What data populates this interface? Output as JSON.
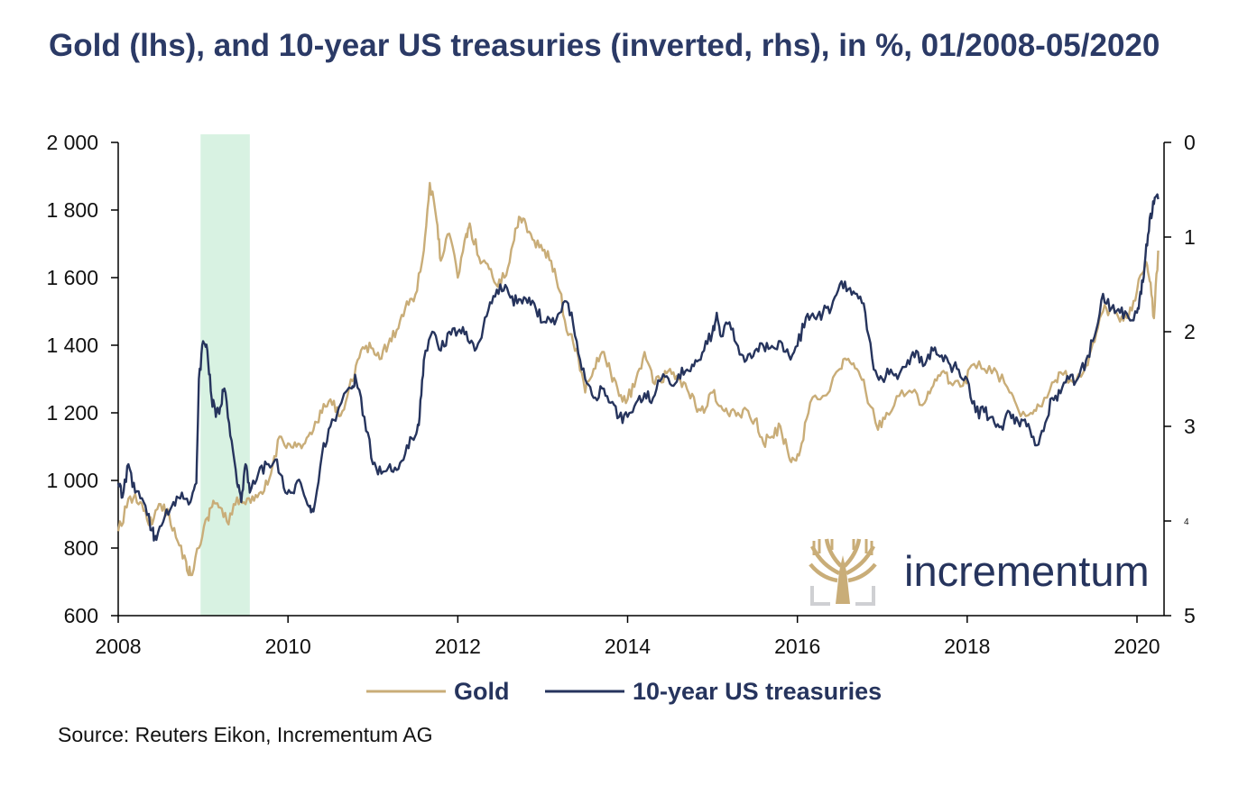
{
  "chart_data": {
    "type": "line",
    "title": "Gold (lhs), and 10-year US treasuries (inverted, rhs), in %, 01/2008-05/2020",
    "source": "Source: Reuters Eikon, Incrementum AG",
    "brand": "incrementum",
    "colors": {
      "gold": "#c9ad78",
      "treasuries": "#26345d",
      "recession": "#d8f2e2",
      "title": "#2b3a66"
    },
    "x_axis": {
      "range": [
        2008.0,
        2020.25
      ],
      "ticks": [
        "2008",
        "2010",
        "2012",
        "2014",
        "2016",
        "2018",
        "2020"
      ],
      "tick_values": [
        2008,
        2010,
        2012,
        2014,
        2016,
        2018,
        2020
      ]
    },
    "y_left": {
      "range": [
        600,
        2000
      ],
      "ticks": [
        "600",
        "800",
        "1 000",
        "1 200",
        "1 400",
        "1 600",
        "1 800",
        "2 000"
      ],
      "tick_values": [
        600,
        800,
        1000,
        1200,
        1400,
        1600,
        1800,
        2000
      ]
    },
    "y_right": {
      "range": [
        0,
        5
      ],
      "inverted": true,
      "ticks": [
        "0",
        "1",
        "2",
        "3",
        "4",
        "5"
      ],
      "tick_values": [
        0,
        1,
        2,
        3,
        4,
        5
      ]
    },
    "shaded_region": [
      2008.97,
      2009.55
    ],
    "legend": {
      "placement": "bottom-center",
      "entries": [
        "Gold",
        "10-year US treasuries"
      ]
    },
    "series": [
      {
        "name": "Gold",
        "axis": "left",
        "points": [
          [
            2008.0,
            850
          ],
          [
            2008.1,
            920
          ],
          [
            2008.2,
            960
          ],
          [
            2008.3,
            910
          ],
          [
            2008.4,
            870
          ],
          [
            2008.5,
            930
          ],
          [
            2008.6,
            900
          ],
          [
            2008.7,
            820
          ],
          [
            2008.8,
            760
          ],
          [
            2008.85,
            720
          ],
          [
            2008.95,
            800
          ],
          [
            2009.05,
            890
          ],
          [
            2009.12,
            940
          ],
          [
            2009.2,
            920
          ],
          [
            2009.3,
            870
          ],
          [
            2009.4,
            950
          ],
          [
            2009.5,
            930
          ],
          [
            2009.6,
            940
          ],
          [
            2009.7,
            960
          ],
          [
            2009.8,
            1020
          ],
          [
            2009.9,
            1130
          ],
          [
            2010.0,
            1110
          ],
          [
            2010.1,
            1100
          ],
          [
            2010.2,
            1110
          ],
          [
            2010.3,
            1150
          ],
          [
            2010.4,
            1200
          ],
          [
            2010.5,
            1240
          ],
          [
            2010.6,
            1190
          ],
          [
            2010.7,
            1250
          ],
          [
            2010.8,
            1340
          ],
          [
            2010.9,
            1390
          ],
          [
            2011.0,
            1390
          ],
          [
            2011.1,
            1360
          ],
          [
            2011.2,
            1420
          ],
          [
            2011.3,
            1450
          ],
          [
            2011.4,
            1530
          ],
          [
            2011.5,
            1550
          ],
          [
            2011.6,
            1680
          ],
          [
            2011.67,
            1880
          ],
          [
            2011.75,
            1770
          ],
          [
            2011.8,
            1650
          ],
          [
            2011.9,
            1730
          ],
          [
            2012.0,
            1600
          ],
          [
            2012.1,
            1730
          ],
          [
            2012.15,
            1750
          ],
          [
            2012.25,
            1660
          ],
          [
            2012.35,
            1640
          ],
          [
            2012.45,
            1580
          ],
          [
            2012.55,
            1600
          ],
          [
            2012.65,
            1700
          ],
          [
            2012.72,
            1780
          ],
          [
            2012.8,
            1760
          ],
          [
            2012.9,
            1710
          ],
          [
            2013.0,
            1680
          ],
          [
            2013.1,
            1650
          ],
          [
            2013.2,
            1560
          ],
          [
            2013.3,
            1430
          ],
          [
            2013.4,
            1390
          ],
          [
            2013.5,
            1260
          ],
          [
            2013.6,
            1330
          ],
          [
            2013.7,
            1380
          ],
          [
            2013.8,
            1320
          ],
          [
            2013.9,
            1250
          ],
          [
            2014.0,
            1240
          ],
          [
            2014.1,
            1300
          ],
          [
            2014.2,
            1380
          ],
          [
            2014.3,
            1290
          ],
          [
            2014.4,
            1290
          ],
          [
            2014.5,
            1330
          ],
          [
            2014.6,
            1300
          ],
          [
            2014.7,
            1270
          ],
          [
            2014.8,
            1220
          ],
          [
            2014.9,
            1200
          ],
          [
            2015.0,
            1260
          ],
          [
            2015.1,
            1220
          ],
          [
            2015.2,
            1190
          ],
          [
            2015.3,
            1200
          ],
          [
            2015.4,
            1210
          ],
          [
            2015.5,
            1180
          ],
          [
            2015.6,
            1110
          ],
          [
            2015.7,
            1130
          ],
          [
            2015.8,
            1160
          ],
          [
            2015.9,
            1070
          ],
          [
            2015.97,
            1060
          ],
          [
            2016.05,
            1110
          ],
          [
            2016.15,
            1230
          ],
          [
            2016.3,
            1250
          ],
          [
            2016.5,
            1330
          ],
          [
            2016.6,
            1360
          ],
          [
            2016.7,
            1330
          ],
          [
            2016.8,
            1270
          ],
          [
            2016.95,
            1150
          ],
          [
            2017.05,
            1200
          ],
          [
            2017.2,
            1250
          ],
          [
            2017.35,
            1260
          ],
          [
            2017.5,
            1230
          ],
          [
            2017.6,
            1280
          ],
          [
            2017.7,
            1320
          ],
          [
            2017.8,
            1290
          ],
          [
            2017.95,
            1280
          ],
          [
            2018.05,
            1340
          ],
          [
            2018.2,
            1330
          ],
          [
            2018.35,
            1320
          ],
          [
            2018.5,
            1260
          ],
          [
            2018.6,
            1210
          ],
          [
            2018.75,
            1200
          ],
          [
            2018.85,
            1220
          ],
          [
            2019.0,
            1290
          ],
          [
            2019.1,
            1320
          ],
          [
            2019.25,
            1290
          ],
          [
            2019.4,
            1340
          ],
          [
            2019.5,
            1410
          ],
          [
            2019.6,
            1500
          ],
          [
            2019.7,
            1510
          ],
          [
            2019.8,
            1470
          ],
          [
            2019.9,
            1480
          ],
          [
            2020.0,
            1560
          ],
          [
            2020.1,
            1640
          ],
          [
            2020.15,
            1590
          ],
          [
            2020.2,
            1480
          ],
          [
            2020.25,
            1680
          ]
        ]
      },
      {
        "name": "10-year US treasuries",
        "axis": "right",
        "points": [
          [
            2008.0,
            3.6
          ],
          [
            2008.05,
            3.75
          ],
          [
            2008.12,
            3.4
          ],
          [
            2008.2,
            3.7
          ],
          [
            2008.3,
            3.8
          ],
          [
            2008.4,
            4.1
          ],
          [
            2008.45,
            4.2
          ],
          [
            2008.55,
            3.95
          ],
          [
            2008.65,
            3.8
          ],
          [
            2008.75,
            3.7
          ],
          [
            2008.85,
            3.8
          ],
          [
            2008.92,
            3.6
          ],
          [
            2008.95,
            2.5
          ],
          [
            2009.0,
            2.1
          ],
          [
            2009.05,
            2.2
          ],
          [
            2009.1,
            2.7
          ],
          [
            2009.15,
            2.9
          ],
          [
            2009.2,
            2.8
          ],
          [
            2009.25,
            2.6
          ],
          [
            2009.32,
            3.1
          ],
          [
            2009.4,
            3.6
          ],
          [
            2009.45,
            3.8
          ],
          [
            2009.5,
            3.4
          ],
          [
            2009.55,
            3.7
          ],
          [
            2009.65,
            3.5
          ],
          [
            2009.75,
            3.4
          ],
          [
            2009.85,
            3.35
          ],
          [
            2009.95,
            3.65
          ],
          [
            2010.05,
            3.7
          ],
          [
            2010.15,
            3.6
          ],
          [
            2010.25,
            3.85
          ],
          [
            2010.3,
            3.9
          ],
          [
            2010.4,
            3.3
          ],
          [
            2010.5,
            3.0
          ],
          [
            2010.6,
            2.8
          ],
          [
            2010.75,
            2.6
          ],
          [
            2010.8,
            2.5
          ],
          [
            2010.9,
            2.9
          ],
          [
            2011.0,
            3.4
          ],
          [
            2011.1,
            3.5
          ],
          [
            2011.2,
            3.4
          ],
          [
            2011.3,
            3.45
          ],
          [
            2011.4,
            3.2
          ],
          [
            2011.5,
            3.1
          ],
          [
            2011.55,
            2.9
          ],
          [
            2011.6,
            2.3
          ],
          [
            2011.7,
            2.0
          ],
          [
            2011.8,
            2.2
          ],
          [
            2011.9,
            2.0
          ],
          [
            2012.0,
            2.0
          ],
          [
            2012.1,
            2.0
          ],
          [
            2012.2,
            2.2
          ],
          [
            2012.3,
            1.95
          ],
          [
            2012.4,
            1.7
          ],
          [
            2012.5,
            1.5
          ],
          [
            2012.6,
            1.6
          ],
          [
            2012.7,
            1.7
          ],
          [
            2012.8,
            1.65
          ],
          [
            2012.9,
            1.7
          ],
          [
            2013.0,
            1.9
          ],
          [
            2013.1,
            1.9
          ],
          [
            2013.2,
            1.8
          ],
          [
            2013.3,
            1.7
          ],
          [
            2013.4,
            2.1
          ],
          [
            2013.5,
            2.5
          ],
          [
            2013.6,
            2.7
          ],
          [
            2013.7,
            2.6
          ],
          [
            2013.8,
            2.75
          ],
          [
            2013.9,
            2.9
          ],
          [
            2014.0,
            2.9
          ],
          [
            2014.1,
            2.75
          ],
          [
            2014.2,
            2.65
          ],
          [
            2014.3,
            2.7
          ],
          [
            2014.4,
            2.5
          ],
          [
            2014.5,
            2.55
          ],
          [
            2014.6,
            2.45
          ],
          [
            2014.7,
            2.4
          ],
          [
            2014.8,
            2.3
          ],
          [
            2014.9,
            2.2
          ],
          [
            2015.0,
            2.0
          ],
          [
            2015.05,
            1.8
          ],
          [
            2015.1,
            2.05
          ],
          [
            2015.2,
            1.9
          ],
          [
            2015.3,
            2.15
          ],
          [
            2015.4,
            2.3
          ],
          [
            2015.5,
            2.2
          ],
          [
            2015.6,
            2.15
          ],
          [
            2015.7,
            2.15
          ],
          [
            2015.8,
            2.1
          ],
          [
            2015.9,
            2.25
          ],
          [
            2016.0,
            2.15
          ],
          [
            2016.1,
            1.85
          ],
          [
            2016.2,
            1.85
          ],
          [
            2016.3,
            1.8
          ],
          [
            2016.4,
            1.75
          ],
          [
            2016.5,
            1.5
          ],
          [
            2016.6,
            1.55
          ],
          [
            2016.7,
            1.6
          ],
          [
            2016.8,
            1.8
          ],
          [
            2016.9,
            2.4
          ],
          [
            2017.0,
            2.5
          ],
          [
            2017.1,
            2.4
          ],
          [
            2017.2,
            2.45
          ],
          [
            2017.3,
            2.3
          ],
          [
            2017.4,
            2.2
          ],
          [
            2017.5,
            2.35
          ],
          [
            2017.6,
            2.2
          ],
          [
            2017.7,
            2.25
          ],
          [
            2017.8,
            2.35
          ],
          [
            2017.9,
            2.4
          ],
          [
            2018.0,
            2.5
          ],
          [
            2018.1,
            2.85
          ],
          [
            2018.2,
            2.85
          ],
          [
            2018.3,
            2.9
          ],
          [
            2018.4,
            3.0
          ],
          [
            2018.5,
            2.85
          ],
          [
            2018.6,
            2.95
          ],
          [
            2018.7,
            3.0
          ],
          [
            2018.8,
            3.2
          ],
          [
            2018.9,
            3.05
          ],
          [
            2019.0,
            2.7
          ],
          [
            2019.1,
            2.65
          ],
          [
            2019.2,
            2.5
          ],
          [
            2019.3,
            2.5
          ],
          [
            2019.4,
            2.3
          ],
          [
            2019.5,
            2.05
          ],
          [
            2019.6,
            1.6
          ],
          [
            2019.7,
            1.75
          ],
          [
            2019.8,
            1.8
          ],
          [
            2019.9,
            1.85
          ],
          [
            2020.0,
            1.8
          ],
          [
            2020.05,
            1.6
          ],
          [
            2020.1,
            1.2
          ],
          [
            2020.15,
            0.8
          ],
          [
            2020.2,
            0.65
          ],
          [
            2020.25,
            0.6
          ]
        ]
      }
    ]
  }
}
